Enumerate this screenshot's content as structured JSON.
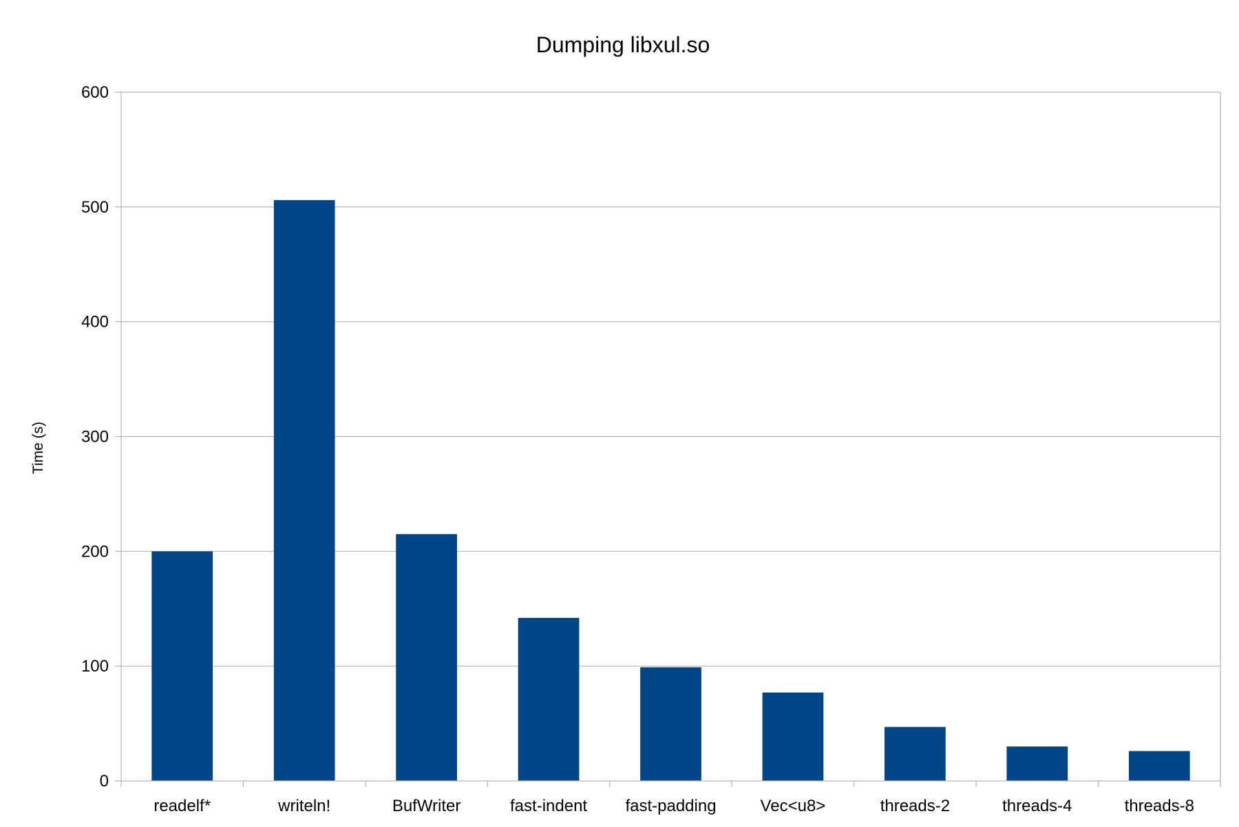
{
  "chart_data": {
    "type": "bar",
    "title": "Dumping libxul.so",
    "xlabel": "",
    "ylabel": "Time (s)",
    "categories": [
      "readelf*",
      "writeln!",
      "BufWriter",
      "fast-indent",
      "fast-padding",
      "Vec<u8>",
      "threads-2",
      "threads-4",
      "threads-8"
    ],
    "values": [
      200,
      506,
      215,
      142,
      99,
      77,
      47,
      30,
      26
    ],
    "ylim": [
      0,
      600
    ],
    "yticks": [
      0,
      100,
      200,
      300,
      400,
      500,
      600
    ],
    "grid": true,
    "legend": "none",
    "bar_color": "#004586",
    "grid_color": "#b3b3b3"
  }
}
